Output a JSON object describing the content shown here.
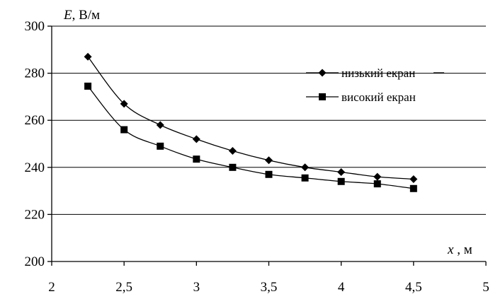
{
  "chart_data": {
    "type": "line",
    "title": "",
    "ylabel": {
      "symbol": "E",
      "unit": ", В/м"
    },
    "xlabel": {
      "symbol": "x",
      "unit": " , м"
    },
    "xlim": [
      2,
      5
    ],
    "ylim": [
      200,
      300
    ],
    "xticks": [
      "2",
      "2,5",
      "3",
      "3,5",
      "4",
      "4,5",
      "5"
    ],
    "yticks": [
      "200",
      "220",
      "240",
      "260",
      "280",
      "300"
    ],
    "xtick_values": [
      2,
      2.5,
      3,
      3.5,
      4,
      4.5,
      5
    ],
    "ytick_values": [
      200,
      220,
      240,
      260,
      280,
      300
    ],
    "grid": {
      "horizontal": true,
      "vertical": false
    },
    "legend_position": "right",
    "series": [
      {
        "name": "низький екран",
        "marker": "diamond",
        "x": [
          2.25,
          2.5,
          2.75,
          3,
          3.25,
          3.5,
          3.75,
          4,
          4.25,
          4.5
        ],
        "y": [
          287,
          267,
          258,
          252,
          247,
          243,
          240,
          238,
          236,
          235
        ]
      },
      {
        "name": "високий екран",
        "marker": "square",
        "x": [
          2.25,
          2.5,
          2.75,
          3,
          3.25,
          3.5,
          3.75,
          4,
          4.25,
          4.5
        ],
        "y": [
          274.5,
          256,
          249,
          243.5,
          240,
          237,
          235.5,
          234,
          233,
          231
        ]
      }
    ]
  }
}
